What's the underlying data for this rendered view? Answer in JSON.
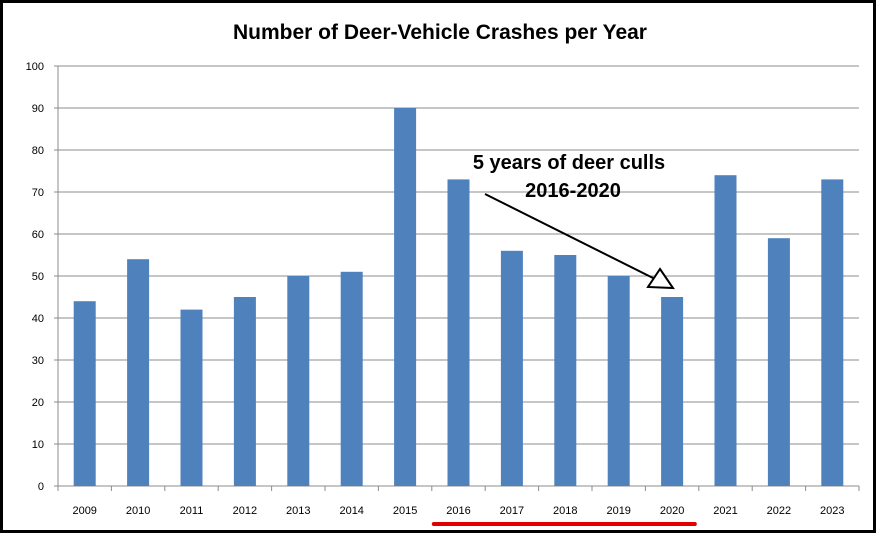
{
  "chart_data": {
    "type": "bar",
    "title": "Number of Deer-Vehicle Crashes per Year",
    "xlabel": "",
    "ylabel": "",
    "categories": [
      "2009",
      "2010",
      "2011",
      "2012",
      "2013",
      "2014",
      "2015",
      "2016",
      "2017",
      "2018",
      "2019",
      "2020",
      "2021",
      "2022",
      "2023"
    ],
    "values": [
      44,
      54,
      42,
      45,
      50,
      51,
      90,
      73,
      56,
      55,
      50,
      45,
      74,
      59,
      73
    ],
    "ylim": [
      0,
      100
    ],
    "yticks": [
      0,
      10,
      20,
      30,
      40,
      50,
      60,
      70,
      80,
      90,
      100
    ],
    "grid": true,
    "legend": "none",
    "bar_color": "#4f81bd",
    "highlight_color": "#e00000",
    "annotation": {
      "line1": "5 years of deer culls",
      "line2": "2016-2020",
      "highlight_range": [
        "2016",
        "2020"
      ]
    }
  }
}
